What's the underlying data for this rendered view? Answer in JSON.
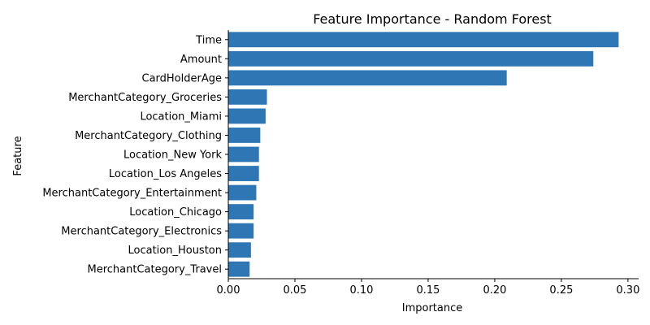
{
  "chart_data": {
    "type": "bar",
    "orientation": "horizontal",
    "title": "Feature Importance - Random Forest",
    "xlabel": "Importance",
    "ylabel": "Feature",
    "xlim": [
      0,
      0.308
    ],
    "xticks": [
      0.0,
      0.05,
      0.1,
      0.15,
      0.2,
      0.25,
      0.3
    ],
    "xtick_labels": [
      "0.00",
      "0.05",
      "0.10",
      "0.15",
      "0.20",
      "0.25",
      "0.30"
    ],
    "grid": false,
    "bar_color": "#2e77b4",
    "categories": [
      "Time",
      "Amount",
      "CardHolderAge",
      "MerchantCategory_Groceries",
      "Location_Miami",
      "MerchantCategory_Clothing",
      "Location_New York",
      "Location_Los Angeles",
      "MerchantCategory_Entertainment",
      "Location_Chicago",
      "MerchantCategory_Electronics",
      "Location_Houston",
      "MerchantCategory_Travel"
    ],
    "values": [
      0.293,
      0.274,
      0.209,
      0.029,
      0.028,
      0.024,
      0.023,
      0.023,
      0.021,
      0.019,
      0.019,
      0.017,
      0.016
    ]
  }
}
